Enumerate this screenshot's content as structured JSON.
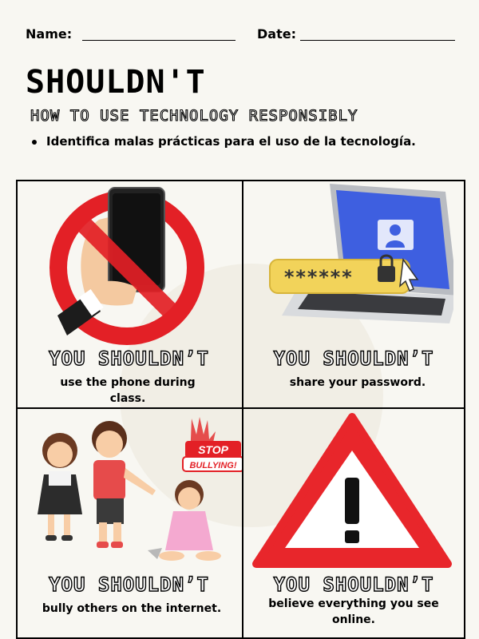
{
  "header": {
    "name_label": "Name:",
    "date_label": "Date:"
  },
  "title": "SHOULDN'T",
  "subtitle": "HOW TO USE TECHNOLOGY RESPONSIBLY",
  "instruction": "Identifica malas prácticas para el uso de la tecnología.",
  "cards": [
    {
      "heading": "YOU SHOULDN’T",
      "caption": "use the phone during class.",
      "icon": "no-phone-icon"
    },
    {
      "heading": "YOU SHOULDN’T",
      "caption": "share your password.",
      "icon": "laptop-password-icon"
    },
    {
      "heading": "YOU SHOULDN’T",
      "caption": "bully others on the internet.",
      "icon": "bullying-scene-icon",
      "badge": "STOP BULLYING!"
    },
    {
      "heading": "YOU SHOULDN’T",
      "caption": "believe everything you see online.",
      "icon": "warning-triangle-icon"
    }
  ],
  "password_mask": "******",
  "colors": {
    "prohibit_red": "#e32026",
    "warning_red": "#e8262b",
    "laptop_blue": "#3e5fe0",
    "password_yellow": "#f2d35a"
  }
}
